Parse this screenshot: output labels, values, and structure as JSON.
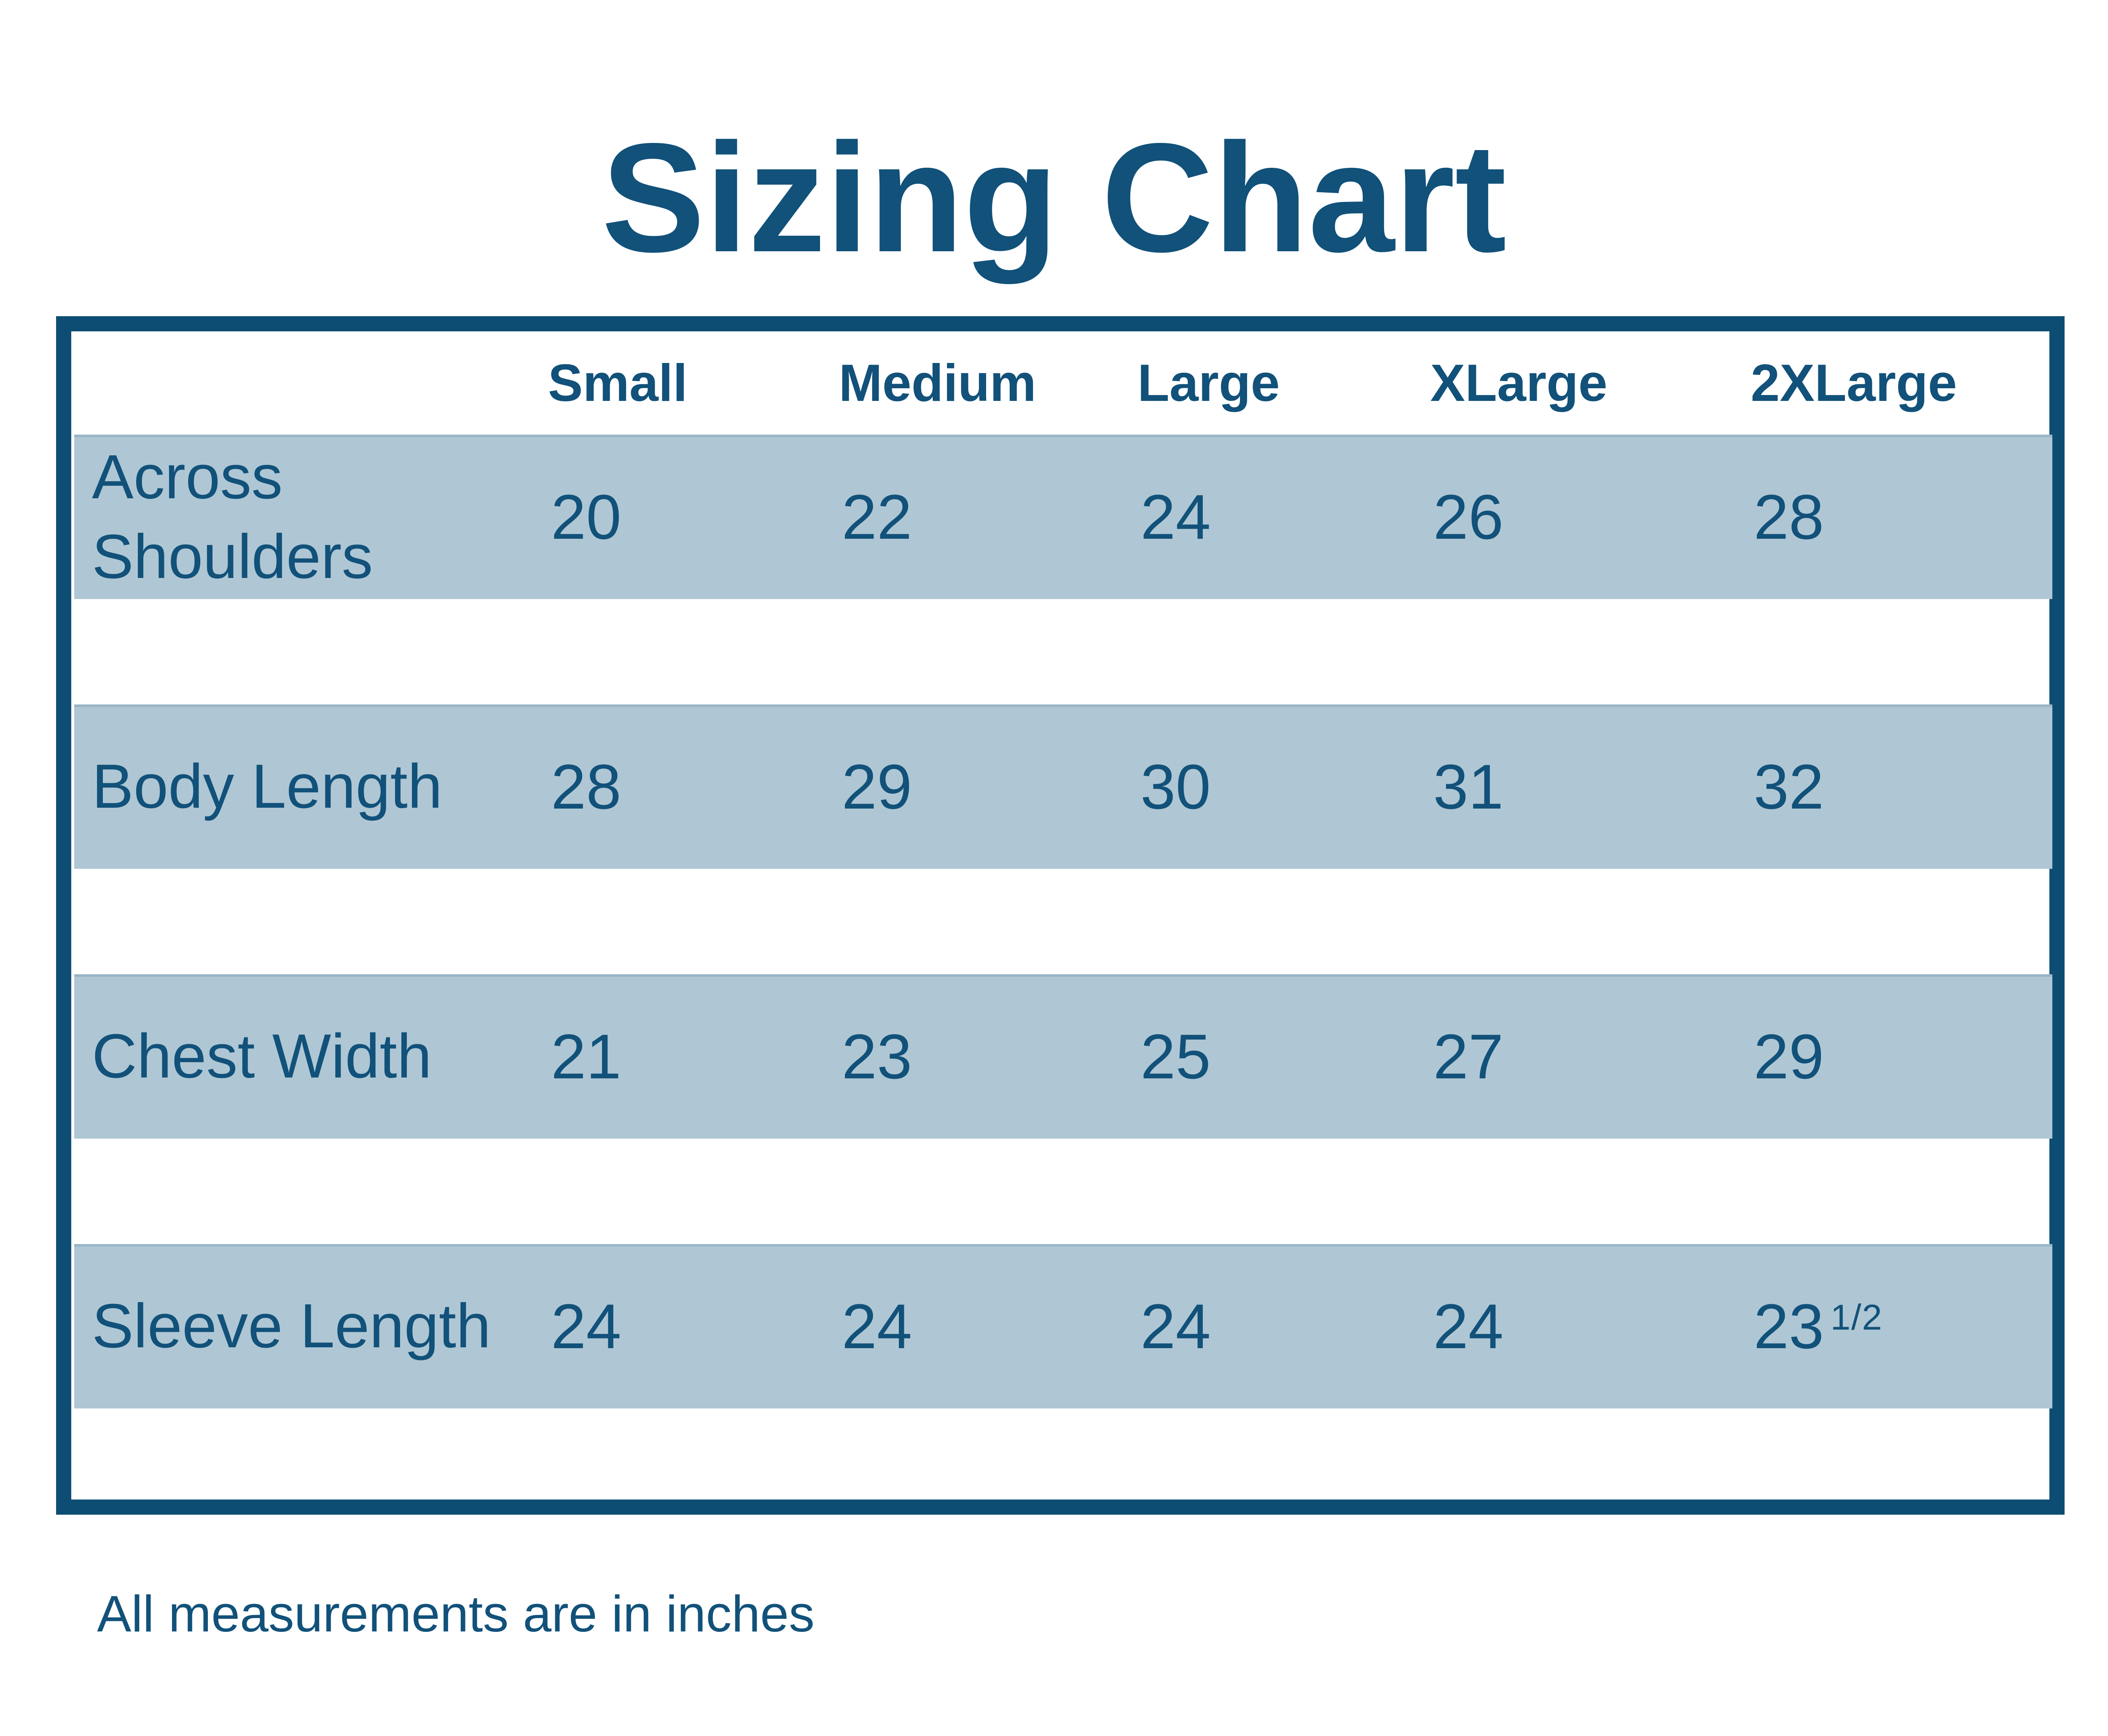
{
  "title": "Sizing Chart",
  "footer_note": "All measurements are in inches",
  "colors": {
    "dark_blue": "#0d4d73",
    "text_blue": "#11517a",
    "band_blue": "#afc7d4",
    "background": "#ffffff"
  },
  "table": {
    "size_headers": [
      "Small",
      "Medium",
      "Large",
      "XLarge",
      "2XLarge"
    ],
    "rows": [
      {
        "label": "Across Shoulders",
        "values": [
          "20",
          "22",
          "24",
          "26",
          "28"
        ]
      },
      {
        "label": "Body Length",
        "values": [
          "28",
          "29",
          "30",
          "31",
          "32"
        ]
      },
      {
        "label": "Chest Width",
        "values": [
          "21",
          "23",
          "25",
          "27",
          "29"
        ]
      },
      {
        "label": "Sleeve Length",
        "values": [
          "24",
          "24",
          "24",
          "24",
          [
            "23",
            "1/2"
          ]
        ]
      }
    ]
  },
  "chart_data": {
    "type": "table",
    "title": "Sizing Chart",
    "columns": [
      "",
      "Small",
      "Medium",
      "Large",
      "XLarge",
      "2XLarge"
    ],
    "rows": [
      [
        "Across Shoulders",
        20,
        22,
        24,
        26,
        28
      ],
      [
        "Body Length",
        28,
        29,
        30,
        31,
        32
      ],
      [
        "Chest Width",
        21,
        23,
        25,
        27,
        29
      ],
      [
        "Sleeve Length",
        24,
        24,
        24,
        24,
        23.5
      ]
    ],
    "note": "All measurements are in inches",
    "layout_hints": {
      "banded_rows": true,
      "band_color": "#afc7d4",
      "outer_border_color": "#0d4d73",
      "grid": false
    }
  }
}
